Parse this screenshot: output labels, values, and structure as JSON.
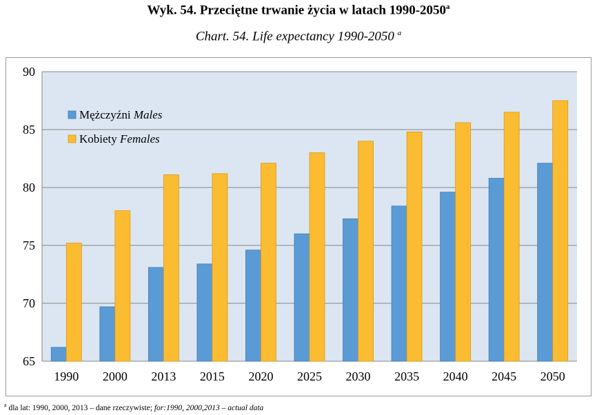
{
  "title_main": "Wyk.  54. Przeciętne trwanie życia w latach 1990-2050",
  "title_sup": "a",
  "subtitle_main": "Chart. 54. Life expectancy 1990-2050",
  "subtitle_sup": "a",
  "footnote": {
    "mark": "a",
    "text_pl": " dla lat: 1990, 2000, 2013 – dane rzeczywiste;  ",
    "text_en": "for:1990, 2000,2013 – actual data"
  },
  "colors": {
    "plot_background": "#dce6f2",
    "males": "#5b9bd5",
    "females": "#fbbc32",
    "grid": "#868686"
  },
  "chart_data": {
    "type": "bar",
    "categories": [
      "1990",
      "2000",
      "2013",
      "2015",
      "2020",
      "2025",
      "2030",
      "2035",
      "2040",
      "2045",
      "2050"
    ],
    "series": [
      {
        "name": "Mężczyźni",
        "name_en": "Males",
        "values": [
          66.2,
          69.7,
          73.1,
          73.4,
          74.6,
          76.0,
          77.3,
          78.4,
          79.6,
          80.8,
          82.1
        ]
      },
      {
        "name": "Kobiety",
        "name_en": "Females",
        "values": [
          75.2,
          78.0,
          81.1,
          81.2,
          82.1,
          83.0,
          84.0,
          84.8,
          85.6,
          86.5,
          87.5
        ]
      }
    ],
    "yticks": [
      65,
      70,
      75,
      80,
      85,
      90
    ],
    "ylim": [
      65,
      90
    ],
    "grid": true,
    "legend_position": "top-left"
  }
}
